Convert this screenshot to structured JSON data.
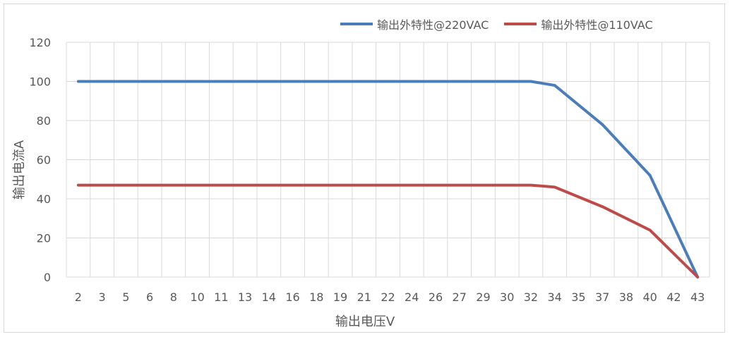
{
  "chart_data": {
    "type": "line",
    "categories": [
      "2",
      "3",
      "5",
      "6",
      "8",
      "10",
      "11",
      "13",
      "14",
      "16",
      "18",
      "19",
      "21",
      "22",
      "24",
      "26",
      "27",
      "29",
      "30",
      "32",
      "34",
      "35",
      "37",
      "38",
      "40",
      "42",
      "43"
    ],
    "series": [
      {
        "name": "输出外特性@220VAC",
        "color": "#4a7ebb",
        "points": [
          {
            "x": "2",
            "y": 100
          },
          {
            "x": "32",
            "y": 100
          },
          {
            "x": "34",
            "y": 98
          },
          {
            "x": "37",
            "y": 78
          },
          {
            "x": "40",
            "y": 52
          },
          {
            "x": "43",
            "y": 0
          }
        ]
      },
      {
        "name": "输出外特性@110VAC",
        "color": "#be4b48",
        "points": [
          {
            "x": "2",
            "y": 47
          },
          {
            "x": "32",
            "y": 47
          },
          {
            "x": "34",
            "y": 46
          },
          {
            "x": "37",
            "y": 36
          },
          {
            "x": "40",
            "y": 24
          },
          {
            "x": "43",
            "y": 0
          }
        ]
      }
    ],
    "xlabel": "输出电压V",
    "ylabel": "输出电流A",
    "ylim": [
      0,
      120
    ],
    "yticks": [
      "0",
      "20",
      "40",
      "60",
      "80",
      "100",
      "120"
    ],
    "grid": true,
    "legend": "top-right"
  }
}
